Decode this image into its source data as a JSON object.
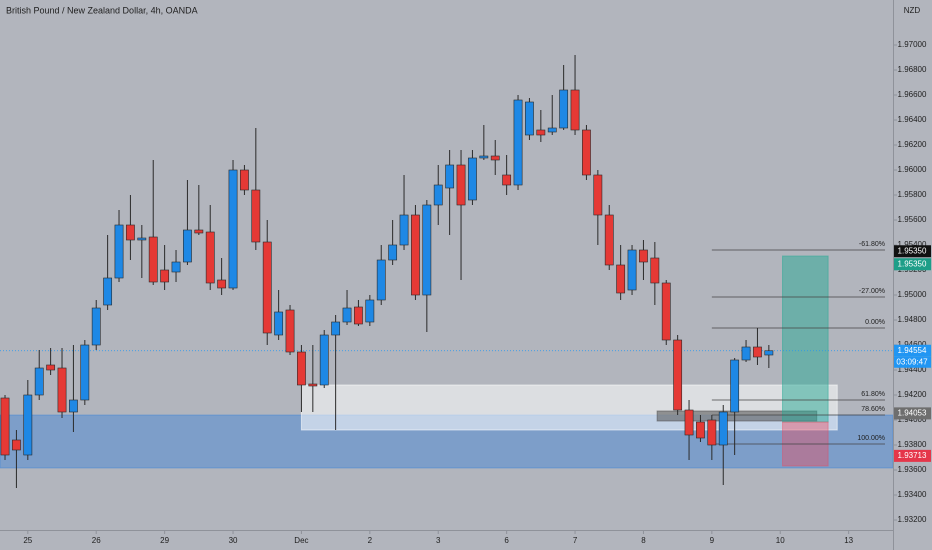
{
  "chart_data": {
    "type": "candlestick",
    "title": "British Pound / New Zealand Dollar, 4h, OANDA",
    "currency": "NZD",
    "up_color": "#1e88e5",
    "down_color": "#e53935",
    "wick_color": "#2a2a2a",
    "categories": [
      null,
      null,
      null,
      null,
      null,
      null,
      null,
      null,
      null,
      null,
      null,
      null,
      null,
      null,
      null,
      null,
      null,
      null,
      null,
      null,
      null,
      null,
      null,
      null,
      null,
      null,
      null,
      null,
      null,
      null,
      null,
      null,
      null,
      null,
      null,
      null,
      null,
      null,
      null,
      null,
      null,
      null,
      null,
      null,
      null,
      null,
      null,
      null,
      null,
      null,
      null,
      null,
      null,
      null,
      null,
      null,
      null,
      null,
      null,
      null,
      null,
      null,
      null,
      null,
      null,
      null,
      null,
      null
    ],
    "series": [
      {
        "open": [
          1.94176,
          1.9384,
          1.9372,
          1.942,
          1.9444,
          1.94416,
          1.94064,
          1.9416,
          1.946,
          1.9492,
          1.95136,
          1.9556,
          1.9544,
          1.95464,
          1.952,
          1.95184,
          1.95264,
          1.9552,
          1.95504,
          1.9512,
          1.95056,
          1.96,
          1.9584,
          1.95424,
          1.9468,
          1.9488,
          1.94544,
          1.94288,
          1.9428,
          1.9468,
          1.94784,
          1.94904,
          1.94784,
          1.9496,
          1.9528,
          1.954,
          1.9564,
          1.95,
          1.9572,
          1.95856,
          1.9604,
          1.9576,
          1.96096,
          1.96112,
          1.9596,
          1.9588,
          1.9628,
          1.9632,
          1.96304,
          1.96336,
          1.9664,
          1.9632,
          1.9596,
          1.9564,
          1.9524,
          1.9504,
          1.9536,
          1.95296,
          1.95096,
          1.9464,
          1.9408,
          1.93984,
          1.94,
          1.938,
          1.94064,
          1.9448,
          1.94584,
          1.9452
        ],
        "high": [
          1.942,
          1.9392,
          1.9432,
          1.9456,
          1.94576,
          1.94576,
          1.946,
          1.9464,
          1.9496,
          1.9548,
          1.9568,
          1.958,
          1.9556,
          1.9608,
          1.954,
          1.9536,
          1.9592,
          1.9588,
          1.9572,
          1.95296,
          1.9608,
          1.9604,
          1.96336,
          1.956,
          1.9504,
          1.9492,
          1.946,
          1.946,
          1.9472,
          1.9484,
          1.9504,
          1.9496,
          1.95,
          1.954,
          1.956,
          1.9596,
          1.9572,
          1.9576,
          1.9604,
          1.9616,
          1.9616,
          1.9616,
          1.9636,
          1.9624,
          1.9612,
          1.966,
          1.96576,
          1.9648,
          1.966,
          1.9684,
          1.9692,
          1.9636,
          1.96,
          1.9572,
          1.954,
          1.954,
          1.9544,
          1.95424,
          1.9512,
          1.9468,
          1.9416,
          1.9404,
          1.9404,
          1.9412,
          1.94496,
          1.9464,
          1.94736,
          1.946
        ],
        "low": [
          1.9368,
          1.93456,
          1.9368,
          1.9416,
          1.9436,
          1.94016,
          1.93904,
          1.9412,
          1.9456,
          1.9488,
          1.95104,
          1.9528,
          1.95136,
          1.9508,
          1.9504,
          1.95104,
          1.9524,
          1.9548,
          1.9504,
          1.95,
          1.9504,
          1.958,
          1.9536,
          1.946,
          1.9464,
          1.9452,
          1.94064,
          1.94064,
          1.94256,
          1.9392,
          1.9476,
          1.94752,
          1.94752,
          1.9492,
          1.9524,
          1.9536,
          1.9496,
          1.94704,
          1.9556,
          1.9548,
          1.9512,
          1.9572,
          1.9608,
          1.9596,
          1.958,
          1.9584,
          1.9624,
          1.96224,
          1.9628,
          1.9632,
          1.9628,
          1.9592,
          1.954,
          1.952,
          1.9496,
          1.95,
          1.9512,
          1.9492,
          1.946,
          1.9404,
          1.9368,
          1.93824,
          1.9368,
          1.9348,
          1.9372,
          1.94464,
          1.9444,
          1.94416
        ],
        "close": [
          1.9372,
          1.9376,
          1.942,
          1.94416,
          1.944,
          1.94064,
          1.9416,
          1.946,
          1.94896,
          1.95136,
          1.9556,
          1.9544,
          1.95456,
          1.95104,
          1.95104,
          1.95264,
          1.9552,
          1.95496,
          1.95096,
          1.95056,
          1.96,
          1.9584,
          1.95424,
          1.94696,
          1.94864,
          1.94544,
          1.9428,
          1.94272,
          1.9468,
          1.94784,
          1.94896,
          1.94768,
          1.9496,
          1.9528,
          1.954,
          1.9564,
          1.95,
          1.9572,
          1.9588,
          1.9604,
          1.9572,
          1.96096,
          1.96112,
          1.9608,
          1.9588,
          1.9656,
          1.96544,
          1.9628,
          1.96336,
          1.9664,
          1.9632,
          1.9596,
          1.9564,
          1.9524,
          1.95016,
          1.9536,
          1.95264,
          1.95096,
          1.9464,
          1.9408,
          1.9388,
          1.93856,
          1.938,
          1.94064,
          1.9448,
          1.94584,
          1.94504,
          1.94554
        ]
      }
    ],
    "xlim": [
      -0.44,
      77.89
    ],
    "xticks": [
      {
        "value": 2,
        "label": "25"
      },
      {
        "value": 8,
        "label": "26"
      },
      {
        "value": 14,
        "label": "29"
      },
      {
        "value": 20,
        "label": "30"
      },
      {
        "value": 26,
        "label": "Dec"
      },
      {
        "value": 32,
        "label": "2"
      },
      {
        "value": 38,
        "label": "3"
      },
      {
        "value": 44,
        "label": "6"
      },
      {
        "value": 50,
        "label": "7"
      },
      {
        "value": 56,
        "label": "8"
      },
      {
        "value": 62,
        "label": "9"
      },
      {
        "value": 68,
        "label": "10"
      },
      {
        "value": 74,
        "label": "13"
      }
    ],
    "ylim": [
      1.9312,
      1.9736
    ],
    "yticks": [
      {
        "value": 1.932,
        "label": "1.93200"
      },
      {
        "value": 1.934,
        "label": "1.93400"
      },
      {
        "value": 1.936,
        "label": "1.93600"
      },
      {
        "value": 1.938,
        "label": "1.93800"
      },
      {
        "value": 1.94,
        "label": "1.94000"
      },
      {
        "value": 1.942,
        "label": "1.94200"
      },
      {
        "value": 1.944,
        "label": "1.94400"
      },
      {
        "value": 1.946,
        "label": "1.94600"
      },
      {
        "value": 1.948,
        "label": "1.94800"
      },
      {
        "value": 1.95,
        "label": "1.95000"
      },
      {
        "value": 1.952,
        "label": "1.95200"
      },
      {
        "value": 1.954,
        "label": "1.95400"
      },
      {
        "value": 1.956,
        "label": "1.95600"
      },
      {
        "value": 1.958,
        "label": "1.95800"
      },
      {
        "value": 1.96,
        "label": "1.96000"
      },
      {
        "value": 1.962,
        "label": "1.96200"
      },
      {
        "value": 1.964,
        "label": "1.96400"
      },
      {
        "value": 1.966,
        "label": "1.96600"
      },
      {
        "value": 1.968,
        "label": "1.96800"
      },
      {
        "value": 1.97,
        "label": "1.97000"
      }
    ],
    "zones": [
      {
        "from": -0.44,
        "to": 77.89,
        "low": 1.93616,
        "high": 1.9404,
        "color": "rgba(40,120,220,0.38)"
      },
      {
        "from": 26,
        "to": 73,
        "low": 1.9392,
        "high": 1.9428,
        "color": "rgba(255,255,255,0.55)"
      },
      {
        "from": 57.2,
        "to": 71.2,
        "low": 1.93992,
        "high": 1.94072,
        "color": "rgba(80,80,80,0.55)"
      },
      {
        "from": 68.2,
        "to": 72.2,
        "low": 1.93984,
        "high": 1.95312,
        "color": "rgba(40,170,150,0.5)"
      },
      {
        "from": 68.2,
        "to": 72.2,
        "low": 1.93632,
        "high": 1.93984,
        "color": "rgba(240,70,90,0.4)"
      }
    ],
    "fib_levels": [
      {
        "value": 1.9536,
        "label": "-61.80%"
      },
      {
        "value": 1.94984,
        "label": "-27.00%"
      },
      {
        "value": 1.94736,
        "label": "0.00%"
      },
      {
        "value": 1.9416,
        "label": "61.80%"
      },
      {
        "value": 1.9404,
        "label": "78.60%"
      },
      {
        "value": 1.93808,
        "label": "100.00%"
      }
    ],
    "fib_start": 62,
    "current_price": {
      "value": 1.94554,
      "label": "1.94554",
      "countdown": "03:09:47",
      "color": "#2196f3"
    },
    "price_labels": [
      {
        "value": 1.9535,
        "label": "1.95350",
        "color": "#111111"
      },
      {
        "value": 1.9535,
        "label": "1.95350",
        "color": "#1e9e88"
      },
      {
        "value": 1.94053,
        "label": "1.94053",
        "color": "#6e6e6e"
      },
      {
        "value": 1.93713,
        "label": "1.93713",
        "color": "#e5364a"
      }
    ]
  }
}
